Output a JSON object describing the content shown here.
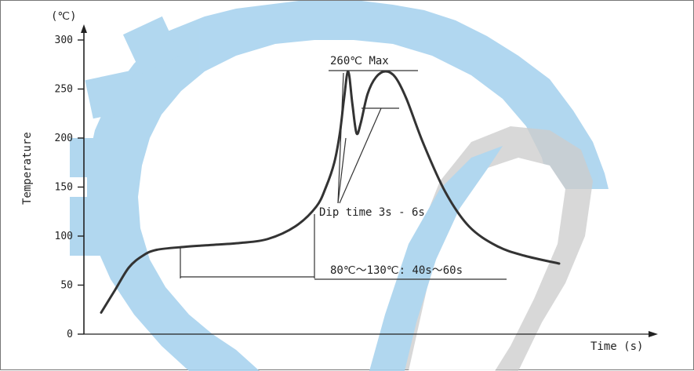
{
  "chart_data": {
    "type": "line",
    "title": "",
    "ylabel": "Temperature",
    "y_unit": "(℃)",
    "xlabel": "Time (s)",
    "ylim": [
      0,
      300
    ],
    "yticks": [
      0,
      50,
      100,
      150,
      200,
      250,
      300
    ],
    "grid": false,
    "series": [
      {
        "values_note_free": true,
        "curve": [
          [
            0,
            22
          ],
          [
            10,
            45
          ],
          [
            20,
            68
          ],
          [
            30,
            80
          ],
          [
            40,
            86
          ],
          [
            60,
            89
          ],
          [
            80,
            91
          ],
          [
            100,
            93
          ],
          [
            120,
            97
          ],
          [
            140,
            110
          ],
          [
            155,
            130
          ],
          [
            162,
            150
          ],
          [
            168,
            175
          ],
          [
            172,
            205
          ],
          [
            175,
            240
          ],
          [
            178,
            268
          ],
          [
            181,
            235
          ],
          [
            184,
            205
          ],
          [
            187,
            215
          ],
          [
            192,
            245
          ],
          [
            198,
            262
          ],
          [
            205,
            268
          ],
          [
            212,
            262
          ],
          [
            220,
            240
          ],
          [
            232,
            195
          ],
          [
            248,
            145
          ],
          [
            265,
            110
          ],
          [
            285,
            90
          ],
          [
            305,
            80
          ],
          [
            330,
            72
          ]
        ]
      }
    ],
    "annotations": {
      "peak": "260℃  Max",
      "dip": "Dip time 3s - 6s",
      "preheat": "80℃～130℃: 40s～60s"
    }
  },
  "colors": {
    "curve": "#333333",
    "watermark_blue": "#a9d3ee",
    "watermark_gray": "#c8c8c8"
  }
}
